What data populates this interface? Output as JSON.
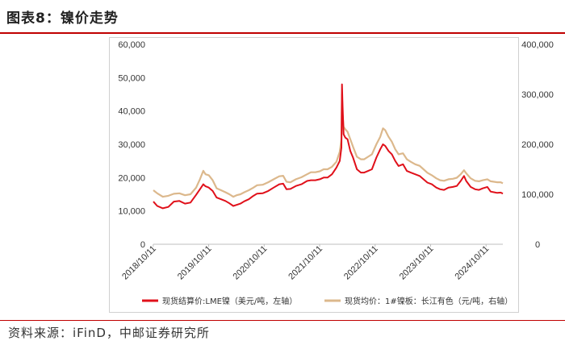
{
  "header": {
    "title": "图表8：镍价走势"
  },
  "footer": {
    "source": "资料来源：iFinD，中邮证券研究所"
  },
  "colors": {
    "accent": "#c00000",
    "lme": "#e0101a",
    "changjiang": "#dcb88c",
    "axis": "#bfbfbf"
  },
  "chart_data": {
    "type": "line",
    "title": "",
    "x_ticks": [
      "2018/10/11",
      "2019/10/11",
      "2020/10/11",
      "2021/10/11",
      "2022/10/11",
      "2023/10/11",
      "2024/10/11"
    ],
    "x_range": [
      2018.78,
      2025.08
    ],
    "y_left": {
      "ticks": [
        "0",
        "10,000",
        "20,000",
        "30,000",
        "40,000",
        "50,000",
        "60,000"
      ],
      "lim": [
        0,
        60000
      ]
    },
    "y_right": {
      "ticks": [
        "0",
        "100,000",
        "200,000",
        "300,000",
        "400,000"
      ],
      "lim": [
        0,
        400000
      ]
    },
    "legend_position": "bottom",
    "series": [
      {
        "name": "现货结算价:LME镍（美元/吨，左轴）",
        "axis": "left",
        "points": [
          [
            2018.78,
            12800
          ],
          [
            2018.85,
            11500
          ],
          [
            2018.95,
            10800
          ],
          [
            2019.05,
            11200
          ],
          [
            2019.15,
            12800
          ],
          [
            2019.25,
            13000
          ],
          [
            2019.35,
            12200
          ],
          [
            2019.45,
            12500
          ],
          [
            2019.55,
            14800
          ],
          [
            2019.62,
            16500
          ],
          [
            2019.68,
            18000
          ],
          [
            2019.72,
            17400
          ],
          [
            2019.78,
            17000
          ],
          [
            2019.85,
            16000
          ],
          [
            2019.92,
            14000
          ],
          [
            2020.0,
            13500
          ],
          [
            2020.08,
            13000
          ],
          [
            2020.15,
            12300
          ],
          [
            2020.22,
            11500
          ],
          [
            2020.28,
            11800
          ],
          [
            2020.35,
            12200
          ],
          [
            2020.42,
            12900
          ],
          [
            2020.5,
            13500
          ],
          [
            2020.58,
            14500
          ],
          [
            2020.65,
            15200
          ],
          [
            2020.75,
            15300
          ],
          [
            2020.85,
            16000
          ],
          [
            2020.95,
            17000
          ],
          [
            2021.05,
            18000
          ],
          [
            2021.12,
            18200
          ],
          [
            2021.18,
            16500
          ],
          [
            2021.25,
            16600
          ],
          [
            2021.35,
            17500
          ],
          [
            2021.45,
            18000
          ],
          [
            2021.55,
            19000
          ],
          [
            2021.62,
            19200
          ],
          [
            2021.7,
            19200
          ],
          [
            2021.78,
            19500
          ],
          [
            2021.85,
            20000
          ],
          [
            2021.92,
            20000
          ],
          [
            2022.0,
            21000
          ],
          [
            2022.08,
            23000
          ],
          [
            2022.14,
            25000
          ],
          [
            2022.17,
            29000
          ],
          [
            2022.18,
            48000
          ],
          [
            2022.19,
            42000
          ],
          [
            2022.21,
            33000
          ],
          [
            2022.24,
            32000
          ],
          [
            2022.28,
            31500
          ],
          [
            2022.33,
            28000
          ],
          [
            2022.38,
            26000
          ],
          [
            2022.45,
            22500
          ],
          [
            2022.52,
            21500
          ],
          [
            2022.58,
            21500
          ],
          [
            2022.65,
            22000
          ],
          [
            2022.72,
            22500
          ],
          [
            2022.8,
            26000
          ],
          [
            2022.87,
            28500
          ],
          [
            2022.92,
            30000
          ],
          [
            2022.96,
            29500
          ],
          [
            2023.02,
            28000
          ],
          [
            2023.08,
            27000
          ],
          [
            2023.14,
            25000
          ],
          [
            2023.2,
            23500
          ],
          [
            2023.28,
            24000
          ],
          [
            2023.35,
            22000
          ],
          [
            2023.42,
            21500
          ],
          [
            2023.5,
            21000
          ],
          [
            2023.58,
            20500
          ],
          [
            2023.65,
            19500
          ],
          [
            2023.72,
            18500
          ],
          [
            2023.8,
            18000
          ],
          [
            2023.88,
            17000
          ],
          [
            2023.95,
            16500
          ],
          [
            2024.02,
            16300
          ],
          [
            2024.1,
            17000
          ],
          [
            2024.18,
            17200
          ],
          [
            2024.25,
            17500
          ],
          [
            2024.32,
            19000
          ],
          [
            2024.38,
            20500
          ],
          [
            2024.42,
            19000
          ],
          [
            2024.5,
            17200
          ],
          [
            2024.58,
            16500
          ],
          [
            2024.65,
            16300
          ],
          [
            2024.72,
            16800
          ],
          [
            2024.8,
            17200
          ],
          [
            2024.86,
            15800
          ],
          [
            2024.92,
            15600
          ],
          [
            2024.98,
            15400
          ],
          [
            2025.04,
            15500
          ],
          [
            2025.08,
            15200
          ]
        ]
      },
      {
        "name": "现货均价：1#镍板：长江有色（元/吨，右轴）",
        "axis": "right",
        "points": [
          [
            2018.78,
            108000
          ],
          [
            2018.85,
            102000
          ],
          [
            2018.95,
            95000
          ],
          [
            2019.05,
            97000
          ],
          [
            2019.15,
            101000
          ],
          [
            2019.25,
            102000
          ],
          [
            2019.35,
            98000
          ],
          [
            2019.45,
            100000
          ],
          [
            2019.55,
            113000
          ],
          [
            2019.62,
            130000
          ],
          [
            2019.68,
            147000
          ],
          [
            2019.72,
            140000
          ],
          [
            2019.78,
            138000
          ],
          [
            2019.85,
            128000
          ],
          [
            2019.92,
            112000
          ],
          [
            2020.0,
            108000
          ],
          [
            2020.08,
            104000
          ],
          [
            2020.15,
            100000
          ],
          [
            2020.22,
            95000
          ],
          [
            2020.28,
            98000
          ],
          [
            2020.35,
            100000
          ],
          [
            2020.42,
            104000
          ],
          [
            2020.5,
            108000
          ],
          [
            2020.58,
            113000
          ],
          [
            2020.65,
            118000
          ],
          [
            2020.75,
            119000
          ],
          [
            2020.85,
            124000
          ],
          [
            2020.95,
            130000
          ],
          [
            2021.05,
            136000
          ],
          [
            2021.12,
            137000
          ],
          [
            2021.18,
            125000
          ],
          [
            2021.25,
            124000
          ],
          [
            2021.35,
            130000
          ],
          [
            2021.45,
            134000
          ],
          [
            2021.55,
            140000
          ],
          [
            2021.62,
            144000
          ],
          [
            2021.7,
            144000
          ],
          [
            2021.78,
            146000
          ],
          [
            2021.85,
            150000
          ],
          [
            2021.92,
            150000
          ],
          [
            2022.0,
            155000
          ],
          [
            2022.08,
            165000
          ],
          [
            2022.14,
            185000
          ],
          [
            2022.17,
            210000
          ],
          [
            2022.18,
            300000
          ],
          [
            2022.19,
            260000
          ],
          [
            2022.21,
            235000
          ],
          [
            2022.24,
            230000
          ],
          [
            2022.28,
            225000
          ],
          [
            2022.33,
            210000
          ],
          [
            2022.38,
            195000
          ],
          [
            2022.45,
            175000
          ],
          [
            2022.52,
            170000
          ],
          [
            2022.58,
            170000
          ],
          [
            2022.65,
            175000
          ],
          [
            2022.72,
            180000
          ],
          [
            2022.8,
            200000
          ],
          [
            2022.87,
            215000
          ],
          [
            2022.92,
            232000
          ],
          [
            2022.96,
            228000
          ],
          [
            2023.02,
            215000
          ],
          [
            2023.08,
            205000
          ],
          [
            2023.14,
            190000
          ],
          [
            2023.2,
            180000
          ],
          [
            2023.28,
            182000
          ],
          [
            2023.35,
            170000
          ],
          [
            2023.42,
            165000
          ],
          [
            2023.5,
            160000
          ],
          [
            2023.58,
            157000
          ],
          [
            2023.65,
            150000
          ],
          [
            2023.72,
            143000
          ],
          [
            2023.8,
            138000
          ],
          [
            2023.88,
            132000
          ],
          [
            2023.95,
            128000
          ],
          [
            2024.02,
            127000
          ],
          [
            2024.1,
            130000
          ],
          [
            2024.18,
            131000
          ],
          [
            2024.25,
            133000
          ],
          [
            2024.32,
            140000
          ],
          [
            2024.38,
            148000
          ],
          [
            2024.42,
            142000
          ],
          [
            2024.5,
            132000
          ],
          [
            2024.58,
            127000
          ],
          [
            2024.65,
            126000
          ],
          [
            2024.72,
            128000
          ],
          [
            2024.8,
            130000
          ],
          [
            2024.86,
            126000
          ],
          [
            2024.92,
            125000
          ],
          [
            2024.98,
            124000
          ],
          [
            2025.04,
            124000
          ],
          [
            2025.08,
            122000
          ]
        ]
      }
    ]
  }
}
